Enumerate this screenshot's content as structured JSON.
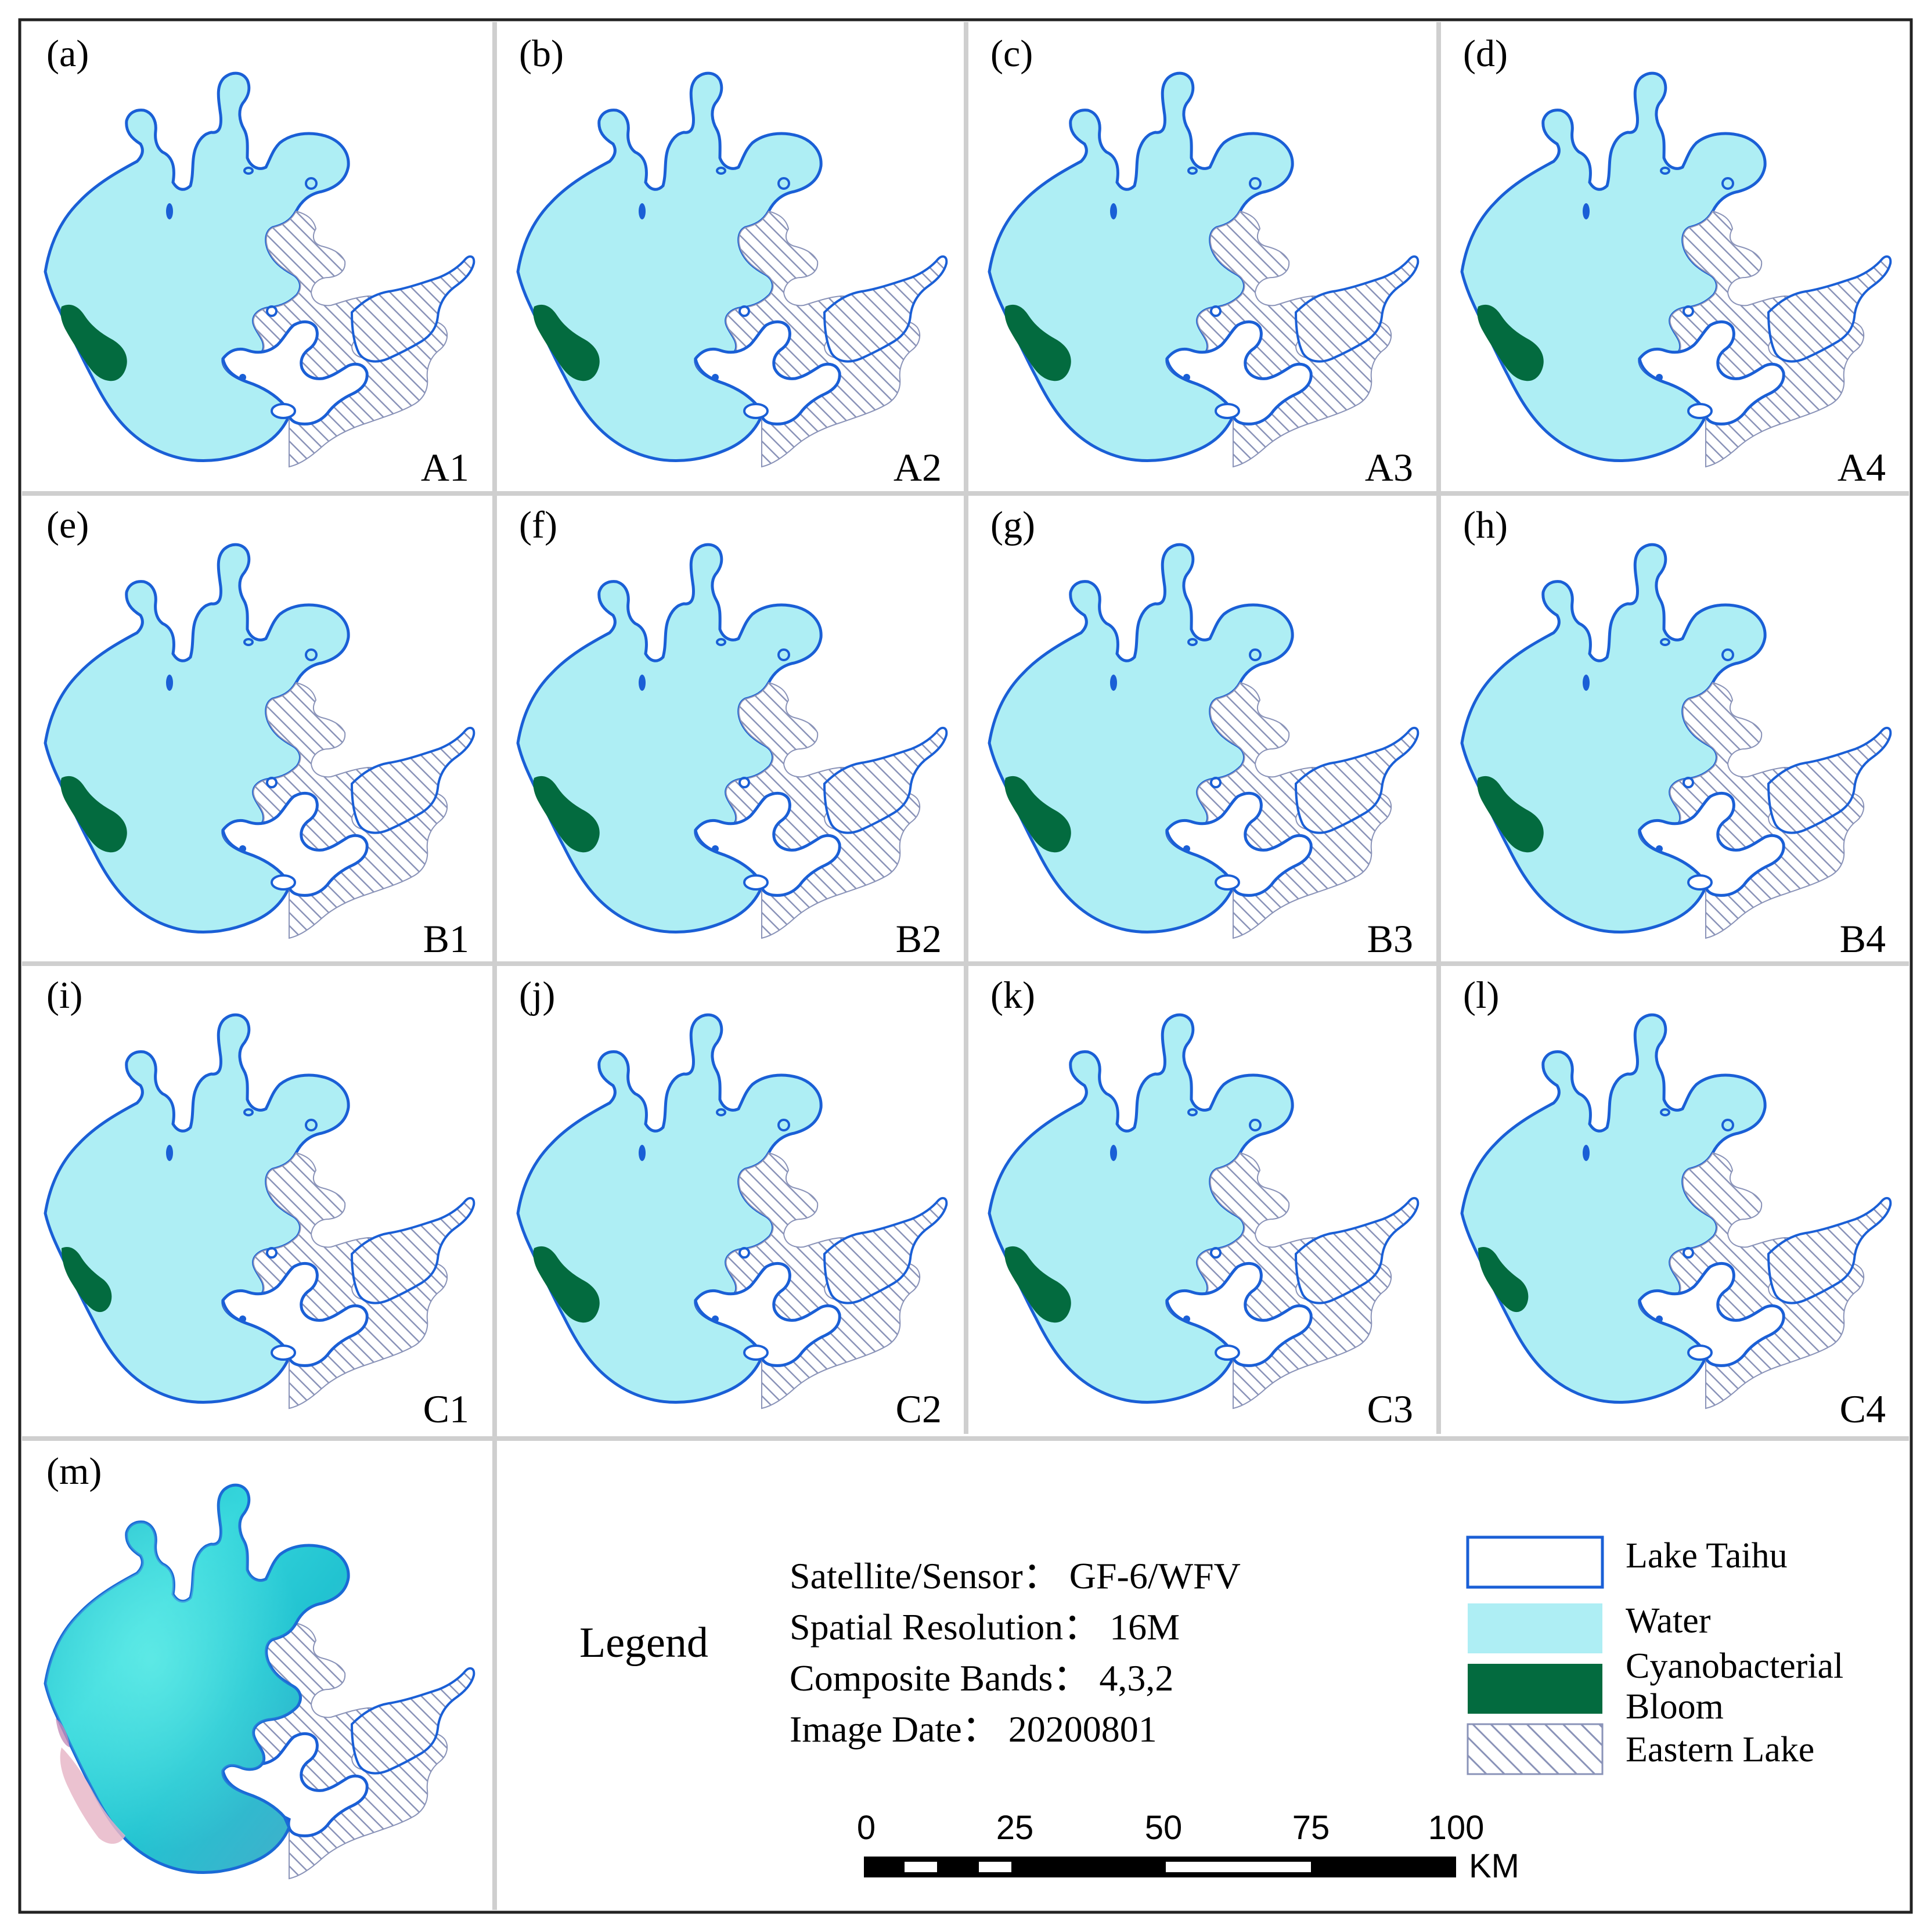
{
  "panels": [
    {
      "letter": "(a)",
      "code": "A1",
      "bloom": "medium"
    },
    {
      "letter": "(b)",
      "code": "A2",
      "bloom": "medium"
    },
    {
      "letter": "(c)",
      "code": "A3",
      "bloom": "medium"
    },
    {
      "letter": "(d)",
      "code": "A4",
      "bloom": "medium"
    },
    {
      "letter": "(e)",
      "code": "B1",
      "bloom": "medium"
    },
    {
      "letter": "(f)",
      "code": "B2",
      "bloom": "medium"
    },
    {
      "letter": "(g)",
      "code": "B3",
      "bloom": "medium"
    },
    {
      "letter": "(h)",
      "code": "B4",
      "bloom": "medium"
    },
    {
      "letter": "(i)",
      "code": "C1",
      "bloom": "small"
    },
    {
      "letter": "(j)",
      "code": "C2",
      "bloom": "medium"
    },
    {
      "letter": "(k)",
      "code": "C3",
      "bloom": "medium"
    },
    {
      "letter": "(l)",
      "code": "C4",
      "bloom": "small"
    }
  ],
  "image_panel": {
    "letter": "(m)"
  },
  "legend": {
    "title": "Legend",
    "info": [
      "Satellite/Sensor： GF-6/WFV",
      "Spatial Resolution： 16M",
      "Composite Bands： 4,3,2",
      "Image Date： 20200801"
    ],
    "items": [
      {
        "type": "outline",
        "label": "Lake Taihu",
        "color": "#1a5fd6"
      },
      {
        "type": "fill",
        "label": "Water",
        "color": "#aeeef4"
      },
      {
        "type": "fill",
        "label": "Cyanobacterial",
        "label2": "Bloom",
        "color": "#036b3f"
      },
      {
        "type": "hatch",
        "label": "Eastern Lake",
        "color": "#8a93b8"
      }
    ]
  },
  "scalebar": {
    "ticks": [
      "0",
      "25",
      "50",
      "75",
      "100"
    ],
    "unit": "KM"
  },
  "colors": {
    "water": "#aeeef4",
    "outline": "#1a5fd6",
    "bloom": "#036b3f",
    "hatch": "#8a93b8",
    "grid": "#cfcfcf",
    "frame": "#222222"
  }
}
